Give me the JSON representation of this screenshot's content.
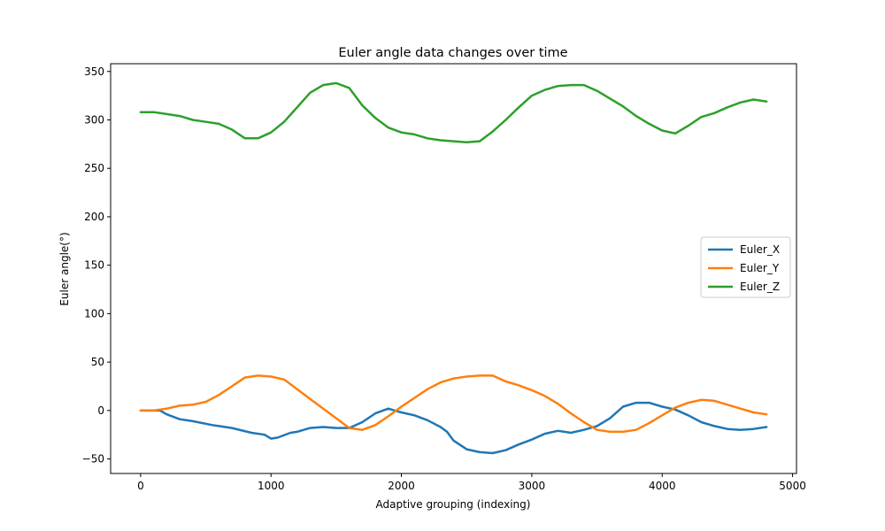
{
  "chart_data": {
    "type": "line",
    "title": "Euler angle data changes over time",
    "xlabel": "Adaptive grouping (indexing)",
    "ylabel": "Euler angle(°)",
    "xlim": [
      -230,
      5030
    ],
    "ylim": [
      -65,
      358
    ],
    "xticks": [
      0,
      1000,
      2000,
      3000,
      4000,
      5000
    ],
    "yticks": [
      -50,
      0,
      50,
      100,
      150,
      200,
      250,
      300,
      350
    ],
    "grid": false,
    "legend_position": "center-right",
    "series": [
      {
        "name": "Euler_X",
        "color": "#1f77b4",
        "points": [
          [
            0,
            0
          ],
          [
            150,
            0
          ],
          [
            200,
            -4
          ],
          [
            300,
            -9
          ],
          [
            400,
            -11
          ],
          [
            550,
            -15
          ],
          [
            700,
            -18
          ],
          [
            850,
            -23
          ],
          [
            950,
            -25
          ],
          [
            1000,
            -29
          ],
          [
            1050,
            -28
          ],
          [
            1150,
            -23
          ],
          [
            1200,
            -22
          ],
          [
            1300,
            -18
          ],
          [
            1400,
            -17
          ],
          [
            1500,
            -18
          ],
          [
            1600,
            -18
          ],
          [
            1700,
            -12
          ],
          [
            1800,
            -3
          ],
          [
            1900,
            2
          ],
          [
            1950,
            0
          ],
          [
            2000,
            -2
          ],
          [
            2100,
            -5
          ],
          [
            2200,
            -10
          ],
          [
            2300,
            -17
          ],
          [
            2350,
            -22
          ],
          [
            2400,
            -31
          ],
          [
            2500,
            -40
          ],
          [
            2600,
            -43
          ],
          [
            2700,
            -44
          ],
          [
            2800,
            -41
          ],
          [
            2900,
            -35
          ],
          [
            3000,
            -30
          ],
          [
            3100,
            -24
          ],
          [
            3200,
            -21
          ],
          [
            3300,
            -23
          ],
          [
            3400,
            -20
          ],
          [
            3500,
            -16
          ],
          [
            3600,
            -8
          ],
          [
            3700,
            4
          ],
          [
            3800,
            8
          ],
          [
            3900,
            8
          ],
          [
            4000,
            4
          ],
          [
            4100,
            1
          ],
          [
            4200,
            -5
          ],
          [
            4300,
            -12
          ],
          [
            4400,
            -16
          ],
          [
            4500,
            -19
          ],
          [
            4600,
            -20
          ],
          [
            4700,
            -19
          ],
          [
            4800,
            -17
          ]
        ]
      },
      {
        "name": "Euler_Y",
        "color": "#ff7f0e",
        "points": [
          [
            0,
            0
          ],
          [
            100,
            0
          ],
          [
            200,
            2
          ],
          [
            300,
            5
          ],
          [
            400,
            6
          ],
          [
            500,
            9
          ],
          [
            600,
            16
          ],
          [
            700,
            25
          ],
          [
            800,
            34
          ],
          [
            900,
            36
          ],
          [
            1000,
            35
          ],
          [
            1100,
            32
          ],
          [
            1200,
            22
          ],
          [
            1300,
            12
          ],
          [
            1400,
            2
          ],
          [
            1500,
            -8
          ],
          [
            1600,
            -18
          ],
          [
            1700,
            -20
          ],
          [
            1800,
            -15
          ],
          [
            1900,
            -6
          ],
          [
            2000,
            4
          ],
          [
            2100,
            13
          ],
          [
            2200,
            22
          ],
          [
            2300,
            29
          ],
          [
            2400,
            33
          ],
          [
            2500,
            35
          ],
          [
            2600,
            36
          ],
          [
            2700,
            36
          ],
          [
            2800,
            30
          ],
          [
            2900,
            26
          ],
          [
            3000,
            21
          ],
          [
            3100,
            15
          ],
          [
            3200,
            7
          ],
          [
            3300,
            -3
          ],
          [
            3400,
            -12
          ],
          [
            3500,
            -20
          ],
          [
            3600,
            -22
          ],
          [
            3700,
            -22
          ],
          [
            3800,
            -20
          ],
          [
            3900,
            -13
          ],
          [
            4000,
            -5
          ],
          [
            4100,
            3
          ],
          [
            4200,
            8
          ],
          [
            4300,
            11
          ],
          [
            4400,
            10
          ],
          [
            4500,
            6
          ],
          [
            4600,
            2
          ],
          [
            4700,
            -2
          ],
          [
            4800,
            -4
          ]
        ]
      },
      {
        "name": "Euler_Z",
        "color": "#2ca02c",
        "points": [
          [
            0,
            308
          ],
          [
            100,
            308
          ],
          [
            200,
            306
          ],
          [
            300,
            304
          ],
          [
            400,
            300
          ],
          [
            500,
            298
          ],
          [
            600,
            296
          ],
          [
            700,
            290
          ],
          [
            800,
            281
          ],
          [
            900,
            281
          ],
          [
            1000,
            287
          ],
          [
            1100,
            298
          ],
          [
            1200,
            313
          ],
          [
            1300,
            328
          ],
          [
            1400,
            336
          ],
          [
            1500,
            338
          ],
          [
            1600,
            333
          ],
          [
            1700,
            315
          ],
          [
            1800,
            302
          ],
          [
            1900,
            292
          ],
          [
            2000,
            287
          ],
          [
            2100,
            285
          ],
          [
            2200,
            281
          ],
          [
            2300,
            279
          ],
          [
            2400,
            278
          ],
          [
            2500,
            277
          ],
          [
            2600,
            278
          ],
          [
            2700,
            288
          ],
          [
            2800,
            300
          ],
          [
            2900,
            313
          ],
          [
            3000,
            325
          ],
          [
            3100,
            331
          ],
          [
            3200,
            335
          ],
          [
            3300,
            336
          ],
          [
            3400,
            336
          ],
          [
            3500,
            330
          ],
          [
            3600,
            322
          ],
          [
            3700,
            314
          ],
          [
            3800,
            304
          ],
          [
            3900,
            296
          ],
          [
            4000,
            289
          ],
          [
            4100,
            286
          ],
          [
            4200,
            294
          ],
          [
            4300,
            303
          ],
          [
            4400,
            307
          ],
          [
            4500,
            313
          ],
          [
            4600,
            318
          ],
          [
            4700,
            321
          ],
          [
            4800,
            319
          ]
        ]
      }
    ]
  }
}
